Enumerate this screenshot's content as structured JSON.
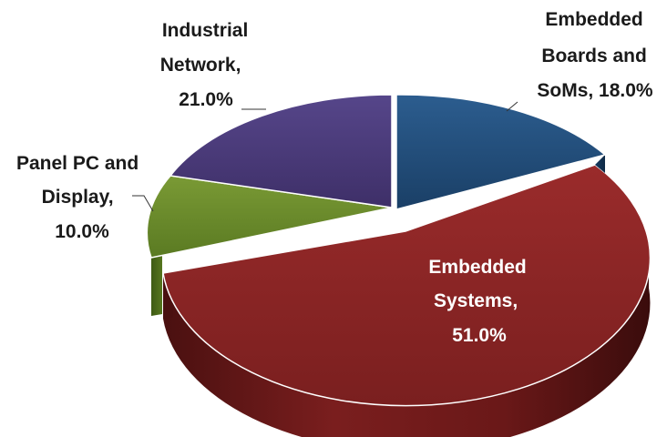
{
  "chart_data": {
    "type": "pie",
    "title": "",
    "slices": [
      {
        "name": "Embedded Boards and SoMs",
        "value": 18.0,
        "label_lines": [
          "Embedded",
          "Boards and",
          "SoMs, 18.0%"
        ],
        "color": "#1f4e79"
      },
      {
        "name": "Embedded Systems",
        "value": 51.0,
        "label_lines": [
          "Embedded",
          "Systems,",
          "51.0%"
        ],
        "color": "#8b2525"
      },
      {
        "name": "Panel PC and Display",
        "value": 10.0,
        "label_lines": [
          "Panel PC and",
          "Display,",
          "10.0%"
        ],
        "color": "#6a8a2a"
      },
      {
        "name": "Industrial Network",
        "value": 21.0,
        "label_lines": [
          "Industrial",
          "Network,",
          "21.0%"
        ],
        "color": "#4b3a78"
      }
    ]
  }
}
